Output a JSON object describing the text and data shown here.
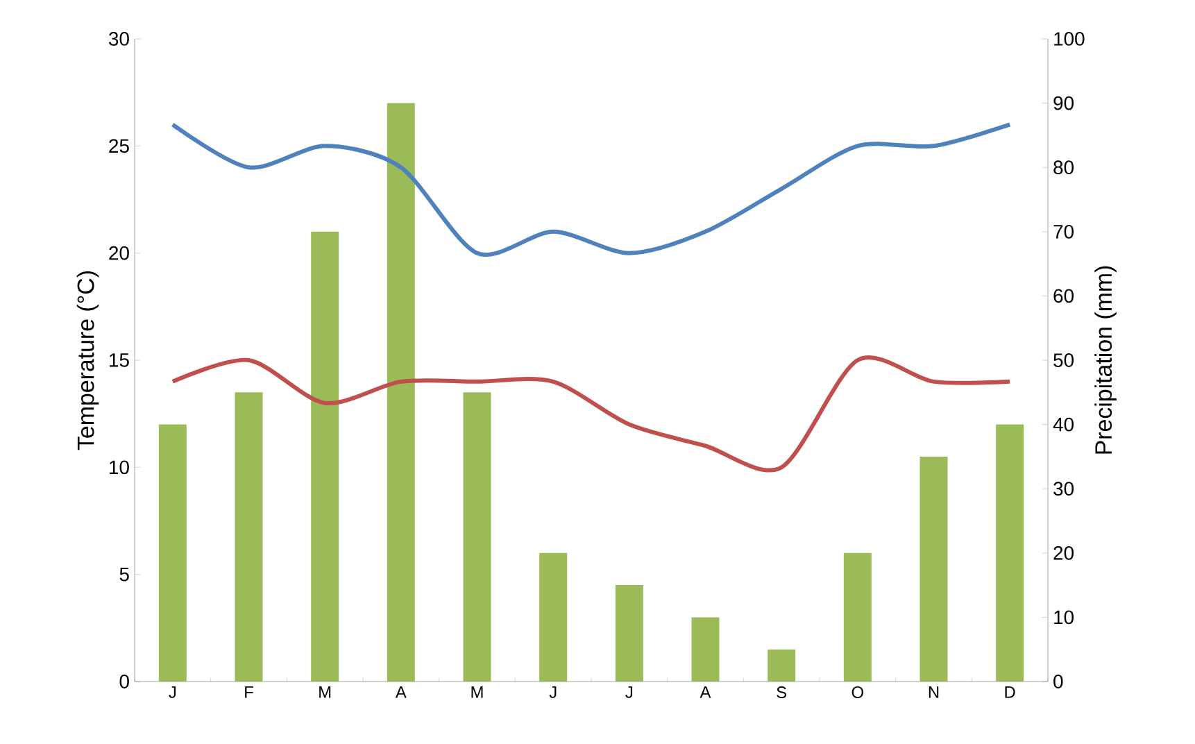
{
  "chart_data": {
    "type": "bar",
    "ylabel": "Temperature (°C)",
    "y2label": "Precipitation (mm)",
    "categories": [
      "J",
      "F",
      "M",
      "A",
      "M",
      "J",
      "J",
      "A",
      "S",
      "O",
      "N",
      "D"
    ],
    "series": [
      {
        "axis": "y2",
        "color": "#9bbb59",
        "values": [
          40,
          45,
          70,
          90,
          45,
          20,
          15,
          10,
          5,
          20,
          35,
          40
        ]
      },
      {
        "type": "line",
        "color": "#4f81bd",
        "values": [
          26,
          24,
          25,
          24,
          20,
          21,
          20,
          21,
          23,
          25,
          25,
          26
        ]
      },
      {
        "type": "line",
        "color": "#c0504d",
        "values": [
          14,
          15,
          13,
          14,
          14,
          14,
          12,
          11,
          10,
          15,
          14,
          14
        ]
      }
    ],
    "ylim": [
      0,
      30
    ],
    "yticks": [
      0,
      5,
      10,
      15,
      20,
      25,
      30
    ],
    "y2lim": [
      0,
      100
    ],
    "y2ticks": [
      0,
      10,
      20,
      30,
      40,
      50,
      60,
      70,
      80,
      90,
      100
    ]
  }
}
